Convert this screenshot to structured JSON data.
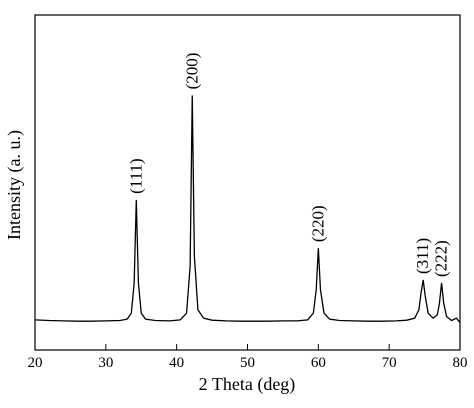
{
  "chart_data": {
    "type": "line",
    "xlabel": "2 Theta (deg)",
    "ylabel": "Intensity (a. u.)",
    "x": [
      20,
      22,
      24,
      26,
      28,
      30,
      32,
      33,
      33.6,
      34.0,
      34.3,
      34.6,
      35.0,
      35.6,
      37,
      39,
      40.5,
      41.4,
      41.9,
      42.2,
      42.5,
      43.0,
      43.8,
      45,
      47,
      49,
      51,
      53,
      55,
      57,
      58.5,
      59.3,
      59.7,
      60.0,
      60.3,
      60.8,
      61.6,
      63,
      65,
      67,
      69,
      71,
      72.5,
      73.6,
      74.2,
      74.5,
      74.8,
      75.1,
      75.5,
      76.2,
      76.8,
      77.1,
      77.4,
      77.7,
      78.1,
      78.8,
      79.5,
      80
    ],
    "values": [
      9.0,
      8.8,
      8.7,
      8.6,
      8.6,
      8.7,
      8.8,
      9.2,
      11,
      20,
      44.8,
      20,
      11,
      9.2,
      8.8,
      8.7,
      9.0,
      11,
      25,
      76,
      28,
      12,
      9.5,
      8.9,
      8.7,
      8.6,
      8.6,
      8.6,
      8.7,
      8.7,
      9.0,
      11,
      18,
      30.4,
      18,
      11,
      9.2,
      8.8,
      8.7,
      8.6,
      8.6,
      8.7,
      8.9,
      9.5,
      12,
      17,
      20.9,
      16,
      11,
      9.5,
      10.5,
      14,
      20,
      14,
      10,
      8.8,
      9.5,
      8.2
    ],
    "color": "#000000",
    "xlim": [
      20,
      80
    ],
    "xticks": [
      20,
      30,
      40,
      50,
      60,
      70,
      80
    ],
    "ylim": [
      0,
      100
    ],
    "annotations": [
      {
        "text": "(111)",
        "x": 34.3,
        "y": 44.8
      },
      {
        "text": "(200)",
        "x": 42.2,
        "y": 76
      },
      {
        "text": "(220)",
        "x": 60.0,
        "y": 30.4
      },
      {
        "text": "(311)",
        "x": 74.8,
        "y": 20.9
      },
      {
        "text": "(222)",
        "x": 77.4,
        "y": 20
      }
    ]
  }
}
